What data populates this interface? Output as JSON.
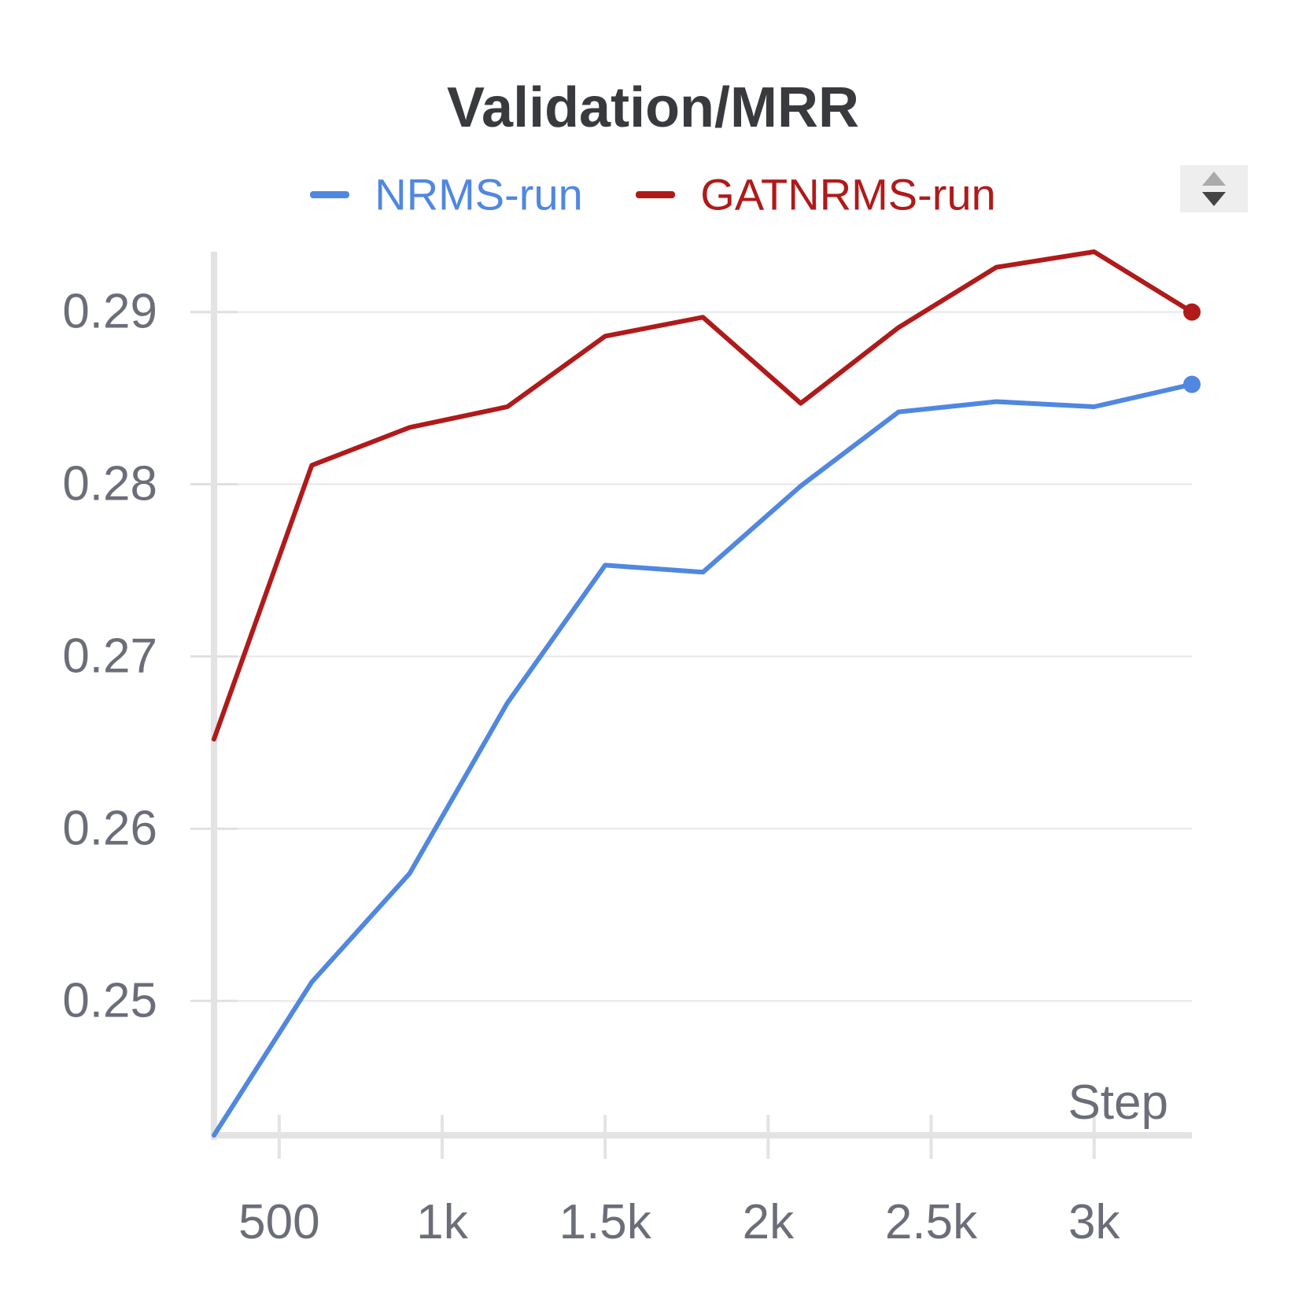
{
  "chart_data": {
    "type": "line",
    "title": "Validation/MRR",
    "xlabel": "Step",
    "ylabel": "",
    "xlim": [
      300,
      3300
    ],
    "ylim": [
      0.2422,
      0.2935
    ],
    "x_ticks": [
      500,
      1000,
      1500,
      2000,
      2500,
      3000
    ],
    "x_tick_labels": [
      "500",
      "1k",
      "1.5k",
      "2k",
      "2.5k",
      "3k"
    ],
    "y_ticks": [
      0.25,
      0.26,
      0.27,
      0.28,
      0.29
    ],
    "y_tick_labels": [
      "0.25",
      "0.26",
      "0.27",
      "0.28",
      "0.29"
    ],
    "grid": "horizontal",
    "legend": "top-center",
    "x": [
      300,
      600,
      900,
      1200,
      1500,
      1800,
      2100,
      2400,
      2700,
      3000,
      3300
    ],
    "series": [
      {
        "name": "NRMS-run",
        "color": "#5087e0",
        "values": [
          0.2422,
          0.2511,
          0.2574,
          0.2673,
          0.2753,
          0.2749,
          0.2799,
          0.2842,
          0.2848,
          0.2845,
          0.2858
        ]
      },
      {
        "name": "GATNRMS-run",
        "color": "#b01a1a",
        "values": [
          0.2652,
          0.2811,
          0.2833,
          0.2845,
          0.2886,
          0.2897,
          0.2847,
          0.2891,
          0.2926,
          0.2935,
          0.29
        ]
      }
    ]
  }
}
